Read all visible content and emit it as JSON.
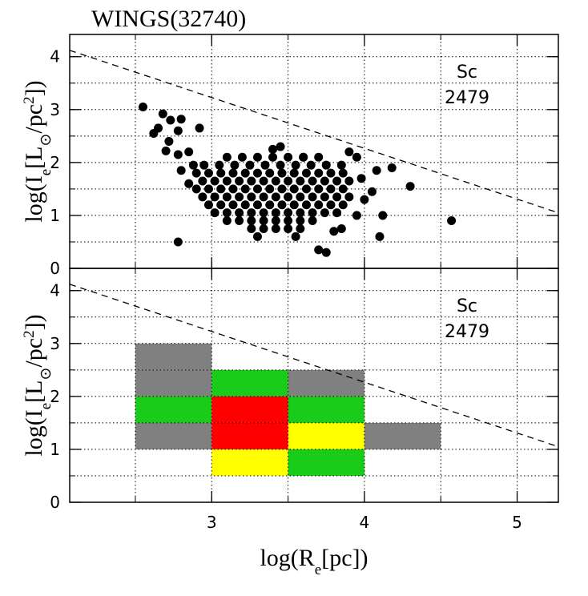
{
  "chart_data": [
    {
      "type": "scatter",
      "title": "WINGS(32740)",
      "ylabel_parts": [
        {
          "text": "log(I"
        },
        {
          "text": "e",
          "shift": "sub"
        },
        {
          "text": "[L"
        },
        {
          "text": "⊙",
          "shift": "sub"
        },
        {
          "text": "/pc"
        },
        {
          "text": "2",
          "shift": "super"
        },
        {
          "text": "])"
        }
      ],
      "xlim": [
        2.07,
        5.27
      ],
      "ylim": [
        0,
        4.42
      ],
      "xticks": [
        3,
        4,
        5
      ],
      "yticks": [
        0,
        1,
        2,
        3,
        4
      ],
      "xgrid": [
        2.5,
        3,
        3.5,
        4,
        4.5,
        5
      ],
      "ygrid": [
        0.5,
        1,
        1.5,
        2,
        2.5,
        3,
        3.5,
        4
      ],
      "grid": true,
      "annotations": [
        "Sc",
        "2479"
      ],
      "color": "#000000",
      "line": {
        "x": [
          2.07,
          5.27
        ],
        "y": [
          4.12,
          1.05
        ],
        "style": "dashed"
      },
      "points": [
        [
          3.1,
          2.1
        ],
        [
          3.2,
          2.1
        ],
        [
          3.3,
          2.1
        ],
        [
          3.4,
          2.1
        ],
        [
          3.5,
          2.1
        ],
        [
          3.6,
          2.1
        ],
        [
          3.7,
          2.1
        ],
        [
          2.95,
          1.95
        ],
        [
          3.05,
          1.95
        ],
        [
          3.15,
          1.95
        ],
        [
          3.25,
          1.95
        ],
        [
          3.35,
          1.95
        ],
        [
          3.45,
          1.95
        ],
        [
          3.55,
          1.95
        ],
        [
          3.65,
          1.95
        ],
        [
          3.75,
          1.95
        ],
        [
          3.85,
          1.95
        ],
        [
          2.9,
          1.8
        ],
        [
          2.98,
          1.8
        ],
        [
          3.06,
          1.8
        ],
        [
          3.14,
          1.8
        ],
        [
          3.22,
          1.8
        ],
        [
          3.3,
          1.8
        ],
        [
          3.38,
          1.8
        ],
        [
          3.46,
          1.8
        ],
        [
          3.54,
          1.8
        ],
        [
          3.62,
          1.8
        ],
        [
          3.7,
          1.8
        ],
        [
          3.78,
          1.8
        ],
        [
          3.86,
          1.8
        ],
        [
          2.94,
          1.65
        ],
        [
          3.02,
          1.65
        ],
        [
          3.1,
          1.65
        ],
        [
          3.18,
          1.65
        ],
        [
          3.26,
          1.65
        ],
        [
          3.34,
          1.65
        ],
        [
          3.42,
          1.65
        ],
        [
          3.5,
          1.65
        ],
        [
          3.58,
          1.65
        ],
        [
          3.66,
          1.65
        ],
        [
          3.74,
          1.65
        ],
        [
          3.82,
          1.65
        ],
        [
          3.9,
          1.65
        ],
        [
          2.9,
          1.5
        ],
        [
          2.98,
          1.5
        ],
        [
          3.06,
          1.5
        ],
        [
          3.14,
          1.5
        ],
        [
          3.22,
          1.5
        ],
        [
          3.3,
          1.5
        ],
        [
          3.38,
          1.5
        ],
        [
          3.46,
          1.5
        ],
        [
          3.54,
          1.5
        ],
        [
          3.62,
          1.5
        ],
        [
          3.7,
          1.5
        ],
        [
          3.78,
          1.5
        ],
        [
          3.86,
          1.5
        ],
        [
          2.94,
          1.35
        ],
        [
          3.02,
          1.35
        ],
        [
          3.1,
          1.35
        ],
        [
          3.18,
          1.35
        ],
        [
          3.26,
          1.35
        ],
        [
          3.34,
          1.35
        ],
        [
          3.42,
          1.35
        ],
        [
          3.5,
          1.35
        ],
        [
          3.58,
          1.35
        ],
        [
          3.66,
          1.35
        ],
        [
          3.74,
          1.35
        ],
        [
          3.82,
          1.35
        ],
        [
          3.9,
          1.35
        ],
        [
          2.98,
          1.2
        ],
        [
          3.06,
          1.2
        ],
        [
          3.14,
          1.2
        ],
        [
          3.22,
          1.2
        ],
        [
          3.3,
          1.2
        ],
        [
          3.38,
          1.2
        ],
        [
          3.46,
          1.2
        ],
        [
          3.54,
          1.2
        ],
        [
          3.62,
          1.2
        ],
        [
          3.7,
          1.2
        ],
        [
          3.78,
          1.2
        ],
        [
          3.86,
          1.2
        ],
        [
          3.02,
          1.05
        ],
        [
          3.1,
          1.05
        ],
        [
          3.18,
          1.05
        ],
        [
          3.26,
          1.05
        ],
        [
          3.34,
          1.05
        ],
        [
          3.42,
          1.05
        ],
        [
          3.5,
          1.05
        ],
        [
          3.58,
          1.05
        ],
        [
          3.66,
          1.05
        ],
        [
          3.74,
          1.05
        ],
        [
          3.82,
          1.05
        ],
        [
          3.1,
          0.9
        ],
        [
          3.18,
          0.9
        ],
        [
          3.26,
          0.9
        ],
        [
          3.34,
          0.9
        ],
        [
          3.42,
          0.9
        ],
        [
          3.5,
          0.9
        ],
        [
          3.58,
          0.9
        ],
        [
          3.66,
          0.9
        ],
        [
          3.26,
          0.75
        ],
        [
          3.34,
          0.75
        ],
        [
          3.42,
          0.75
        ],
        [
          3.5,
          0.75
        ],
        [
          3.58,
          0.75
        ],
        [
          2.55,
          3.05
        ],
        [
          2.65,
          2.65
        ],
        [
          2.68,
          2.92
        ],
        [
          2.73,
          2.8
        ],
        [
          2.62,
          2.55
        ],
        [
          2.72,
          2.4
        ],
        [
          2.78,
          2.6
        ],
        [
          2.8,
          2.82
        ],
        [
          2.92,
          2.65
        ],
        [
          2.78,
          2.15
        ],
        [
          2.85,
          2.2
        ],
        [
          2.7,
          2.22
        ],
        [
          2.78,
          0.5
        ],
        [
          3.75,
          0.3
        ],
        [
          3.7,
          0.35
        ],
        [
          4.57,
          0.9
        ],
        [
          4.3,
          1.55
        ],
        [
          4.18,
          1.9
        ],
        [
          4.05,
          1.45
        ],
        [
          4.1,
          0.6
        ],
        [
          4.12,
          1.0
        ],
        [
          4.0,
          1.3
        ],
        [
          3.95,
          2.1
        ],
        [
          3.9,
          2.2
        ],
        [
          3.6,
          2.1
        ],
        [
          3.4,
          2.25
        ],
        [
          3.45,
          2.3
        ],
        [
          3.8,
          0.7
        ],
        [
          3.85,
          0.75
        ],
        [
          2.8,
          1.85
        ],
        [
          2.85,
          1.6
        ],
        [
          2.88,
          1.95
        ],
        [
          3.98,
          1.7
        ],
        [
          4.08,
          1.85
        ],
        [
          3.95,
          1.0
        ],
        [
          3.3,
          0.6
        ],
        [
          3.55,
          0.6
        ]
      ]
    },
    {
      "type": "heatmap",
      "ylabel_parts": [
        {
          "text": "log(I"
        },
        {
          "text": "e",
          "shift": "sub"
        },
        {
          "text": "[L"
        },
        {
          "text": "⊙",
          "shift": "sub"
        },
        {
          "text": "/pc"
        },
        {
          "text": "2",
          "shift": "super"
        },
        {
          "text": "])"
        }
      ],
      "xlabel_parts": [
        {
          "text": "log(R"
        },
        {
          "text": "e",
          "shift": "sub"
        },
        {
          "text": "[pc])"
        }
      ],
      "xlim": [
        2.07,
        5.27
      ],
      "ylim": [
        0,
        4.42
      ],
      "xticks": [
        3,
        4,
        5
      ],
      "yticks": [
        0,
        1,
        2,
        3,
        4
      ],
      "xgrid": [
        2.5,
        3,
        3.5,
        4,
        4.5,
        5
      ],
      "ygrid": [
        0.5,
        1,
        1.5,
        2,
        2.5,
        3,
        3.5,
        4
      ],
      "grid": true,
      "annotations": [
        "Sc",
        "2479"
      ],
      "line": {
        "x": [
          2.07,
          5.27
        ],
        "y": [
          4.12,
          1.05
        ],
        "style": "dashed"
      },
      "bin_width": 0.5,
      "cells": [
        {
          "x": 2.5,
          "y": 2.5,
          "color": "#808080"
        },
        {
          "x": 2.5,
          "y": 2.0,
          "color": "#808080"
        },
        {
          "x": 2.5,
          "y": 1.5,
          "color": "#19cc19"
        },
        {
          "x": 2.5,
          "y": 1.0,
          "color": "#808080"
        },
        {
          "x": 3.0,
          "y": 2.0,
          "color": "#19cc19"
        },
        {
          "x": 3.0,
          "y": 1.5,
          "color": "#ff0000"
        },
        {
          "x": 3.0,
          "y": 1.0,
          "color": "#ff0000"
        },
        {
          "x": 3.0,
          "y": 0.5,
          "color": "#ffff00"
        },
        {
          "x": 3.5,
          "y": 2.0,
          "color": "#808080"
        },
        {
          "x": 3.5,
          "y": 1.5,
          "color": "#19cc19"
        },
        {
          "x": 3.5,
          "y": 1.0,
          "color": "#ffff00"
        },
        {
          "x": 3.5,
          "y": 0.5,
          "color": "#19cc19"
        },
        {
          "x": 4.0,
          "y": 1.0,
          "color": "#808080"
        }
      ]
    }
  ]
}
